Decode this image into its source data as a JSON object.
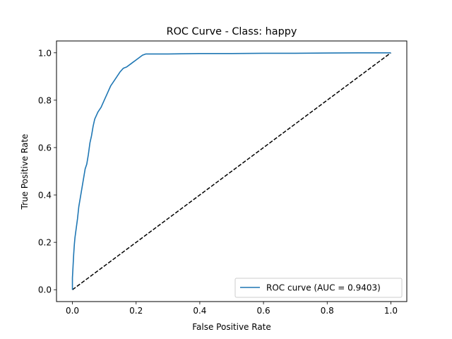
{
  "chart_data": {
    "type": "line",
    "title": "ROC Curve - Class: happy",
    "xlabel": "False Positive Rate",
    "ylabel": "True Positive Rate",
    "xlim": [
      -0.05,
      1.05
    ],
    "ylim": [
      -0.05,
      1.05
    ],
    "xticks": [
      0.0,
      0.2,
      0.4,
      0.6,
      0.8,
      1.0
    ],
    "yticks": [
      0.0,
      0.2,
      0.4,
      0.6,
      0.8,
      1.0
    ],
    "xtick_labels": [
      "0.0",
      "0.2",
      "0.4",
      "0.6",
      "0.8",
      "1.0"
    ],
    "ytick_labels": [
      "0.0",
      "0.2",
      "0.4",
      "0.6",
      "0.8",
      "1.0"
    ],
    "grid": false,
    "legend_position": "lower-right",
    "series": [
      {
        "name": "ROC curve (AUC = 0.9403)",
        "color": "#1f77b4",
        "style": "solid",
        "x": [
          0.0,
          0.0,
          0.002,
          0.004,
          0.006,
          0.008,
          0.012,
          0.016,
          0.02,
          0.025,
          0.03,
          0.035,
          0.04,
          0.045,
          0.05,
          0.055,
          0.06,
          0.065,
          0.07,
          0.08,
          0.09,
          0.1,
          0.11,
          0.12,
          0.13,
          0.14,
          0.15,
          0.16,
          0.17,
          0.18,
          0.19,
          0.2,
          0.21,
          0.22,
          0.23,
          0.24,
          0.3,
          0.4,
          0.5,
          0.6,
          0.7,
          0.8,
          0.9,
          1.0
        ],
        "y": [
          0.0,
          0.05,
          0.1,
          0.15,
          0.19,
          0.22,
          0.26,
          0.3,
          0.35,
          0.39,
          0.43,
          0.47,
          0.51,
          0.53,
          0.57,
          0.62,
          0.65,
          0.69,
          0.72,
          0.75,
          0.77,
          0.8,
          0.83,
          0.86,
          0.88,
          0.9,
          0.92,
          0.935,
          0.94,
          0.95,
          0.96,
          0.97,
          0.98,
          0.99,
          0.995,
          0.995,
          0.995,
          0.997,
          0.997,
          0.998,
          0.998,
          0.999,
          1.0,
          1.0
        ]
      },
      {
        "name": "",
        "color": "#000000",
        "style": "dashed",
        "x": [
          0.0,
          1.0
        ],
        "y": [
          0.0,
          1.0
        ]
      }
    ]
  }
}
